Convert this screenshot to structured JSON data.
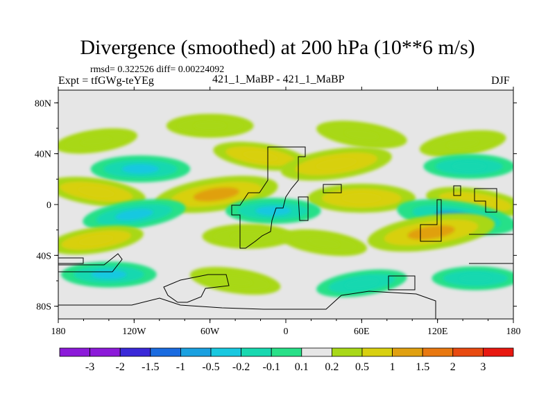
{
  "chart_data": {
    "type": "heatmap",
    "title": "Divergence (smoothed) at 200 hPa (10**6 m/s)",
    "stats_text": "rmsd= 0.322526 diff= 0.00224092",
    "expt_text": "Expt = tfGWg-teYEg",
    "center_label": "421_1_MaBP - 421_1_MaBP",
    "season": "DJF",
    "x_range": [
      -180,
      180
    ],
    "y_range": [
      -90,
      90
    ],
    "x_ticks": [
      {
        "value": -180,
        "label": "180"
      },
      {
        "value": -120,
        "label": "120W"
      },
      {
        "value": -60,
        "label": "60W"
      },
      {
        "value": 0,
        "label": "0"
      },
      {
        "value": 60,
        "label": "60E"
      },
      {
        "value": 120,
        "label": "120E"
      },
      {
        "value": 180,
        "label": "180"
      }
    ],
    "y_ticks": [
      {
        "value": 80,
        "label": "80N"
      },
      {
        "value": 40,
        "label": "40N"
      },
      {
        "value": 0,
        "label": "0"
      },
      {
        "value": -40,
        "label": "40S"
      },
      {
        "value": -80,
        "label": "80S"
      }
    ],
    "colorbar_labels": [
      "-3",
      "-2",
      "-1.5",
      "-1",
      "-0.5",
      "-0.2",
      "-0.1",
      "0.1",
      "0.2",
      "0.5",
      "1",
      "1.5",
      "2",
      "3"
    ],
    "colorbar_colors": [
      "#8c1ad9",
      "#3a28d8",
      "#1a6be0",
      "#1aa0e0",
      "#18c8e0",
      "#18d8b0",
      "#28e088",
      "#e6e6e6",
      "#a8d818",
      "#d8d010",
      "#e0a010",
      "#e87810",
      "#e84a10",
      "#e81810"
    ],
    "fields": [
      {
        "name": "band-north-1",
        "lon": -150,
        "lat": 50,
        "value": 0.2
      },
      {
        "name": "band-north-2",
        "lon": -60,
        "lat": 62,
        "value": 0.3
      },
      {
        "name": "band-north-3",
        "lon": 60,
        "lat": 55,
        "value": 0.4
      },
      {
        "name": "band-north-4",
        "lon": 140,
        "lat": 48,
        "value": 0.3
      },
      {
        "name": "band-midlat-1",
        "lon": -115,
        "lat": 28,
        "value": -0.6
      },
      {
        "name": "band-midlat-2",
        "lon": -20,
        "lat": 38,
        "value": 0.5
      },
      {
        "name": "band-midlat-3",
        "lon": 40,
        "lat": 32,
        "value": 0.9
      },
      {
        "name": "band-midlat-4",
        "lon": 145,
        "lat": 30,
        "value": -0.4
      },
      {
        "name": "band-tropic-1",
        "lon": -150,
        "lat": 10,
        "value": 0.6
      },
      {
        "name": "band-tropic-2",
        "lon": -55,
        "lat": 8,
        "value": 1.2
      },
      {
        "name": "band-tropic-3",
        "lon": 60,
        "lat": 5,
        "value": 0.8
      },
      {
        "name": "band-tropic-4",
        "lon": 150,
        "lat": 2,
        "value": 0.6
      },
      {
        "name": "band-equator-1",
        "lon": -120,
        "lat": -8,
        "value": -0.7
      },
      {
        "name": "band-equator-2",
        "lon": -10,
        "lat": -5,
        "value": -0.5
      },
      {
        "name": "band-equator-3",
        "lon": 135,
        "lat": -10,
        "value": -1.1
      },
      {
        "name": "band-south-1",
        "lon": -150,
        "lat": -28,
        "value": 0.5
      },
      {
        "name": "band-south-2",
        "lon": -30,
        "lat": -25,
        "value": 0.4
      },
      {
        "name": "band-south-3",
        "lon": 30,
        "lat": -30,
        "value": 0.3
      },
      {
        "name": "band-south-4",
        "lon": 115,
        "lat": -22,
        "value": 1.3
      },
      {
        "name": "band-far-south-1",
        "lon": -140,
        "lat": -55,
        "value": -0.5
      },
      {
        "name": "band-far-south-2",
        "lon": -40,
        "lat": -60,
        "value": 0.4
      },
      {
        "name": "band-far-south-3",
        "lon": 60,
        "lat": -62,
        "value": -0.4
      },
      {
        "name": "band-far-south-4",
        "lon": 150,
        "lat": -58,
        "value": -0.3
      }
    ]
  }
}
